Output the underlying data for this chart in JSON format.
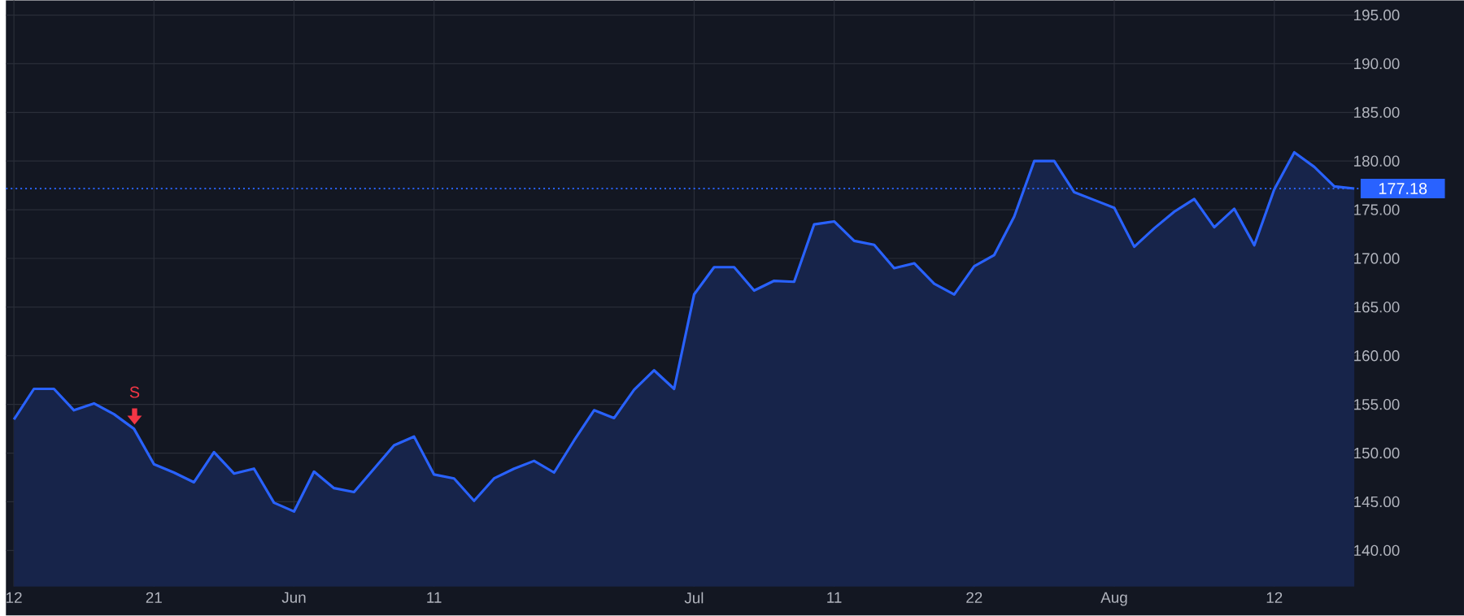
{
  "chart_data": {
    "type": "area",
    "categories": [
      "12",
      null,
      null,
      null,
      null,
      null,
      null,
      "21",
      null,
      null,
      null,
      null,
      null,
      null,
      "Jun",
      null,
      null,
      null,
      null,
      null,
      null,
      "11",
      null,
      null,
      null,
      null,
      null,
      null,
      null,
      null,
      null,
      null,
      null,
      null,
      "Jul",
      null,
      null,
      null,
      null,
      null,
      null,
      "11",
      null,
      null,
      null,
      null,
      null,
      null,
      "22",
      null,
      null,
      null,
      null,
      null,
      null,
      "Aug",
      null,
      null,
      null,
      null,
      null,
      null,
      null,
      "12",
      null,
      null,
      null,
      null
    ],
    "series": [
      {
        "color": "#2962ff",
        "values": [
          153.45,
          156.6,
          156.6,
          154.4,
          155.1,
          154.0,
          152.5,
          148.85,
          148.0,
          147.0,
          150.1,
          147.9,
          148.4,
          144.9,
          144.0,
          148.1,
          146.4,
          146.0,
          148.4,
          150.8,
          151.7,
          147.8,
          147.4,
          145.1,
          147.4,
          148.4,
          149.2,
          148.0,
          151.3,
          154.4,
          153.6,
          156.5,
          158.5,
          156.6,
          166.3,
          169.1,
          169.1,
          166.7,
          167.7,
          167.6,
          173.5,
          173.8,
          171.8,
          171.4,
          169.0,
          169.5,
          167.4,
          166.3,
          169.2,
          170.35,
          174.3,
          180.0,
          180.0,
          176.8,
          176.0,
          175.2,
          171.2,
          173.1,
          174.8,
          176.1,
          173.2,
          175.1,
          171.35,
          177.1,
          180.9,
          179.4,
          177.4,
          177.18
        ]
      }
    ],
    "ylim": [
      136.3,
      196.5
    ],
    "yticks": [
      {
        "value": 140,
        "label": "140.00"
      },
      {
        "value": 145,
        "label": "145.00"
      },
      {
        "value": 150,
        "label": "150.00"
      },
      {
        "value": 155,
        "label": "155.00"
      },
      {
        "value": 160,
        "label": "160.00"
      },
      {
        "value": 165,
        "label": "165.00"
      },
      {
        "value": 170,
        "label": "170.00"
      },
      {
        "value": 175,
        "label": "175.00"
      },
      {
        "value": 180,
        "label": "180.00"
      },
      {
        "value": 185,
        "label": "185.00"
      },
      {
        "value": 190,
        "label": "190.00"
      },
      {
        "value": 195,
        "label": "195.00"
      }
    ],
    "grid": true,
    "ref_lines": [
      {
        "axis": "y",
        "value": 177.18,
        "label": "177.18",
        "color": "#2962ff",
        "line_style": "dotted"
      }
    ],
    "annotations": [
      {
        "text": "S"
      }
    ]
  }
}
